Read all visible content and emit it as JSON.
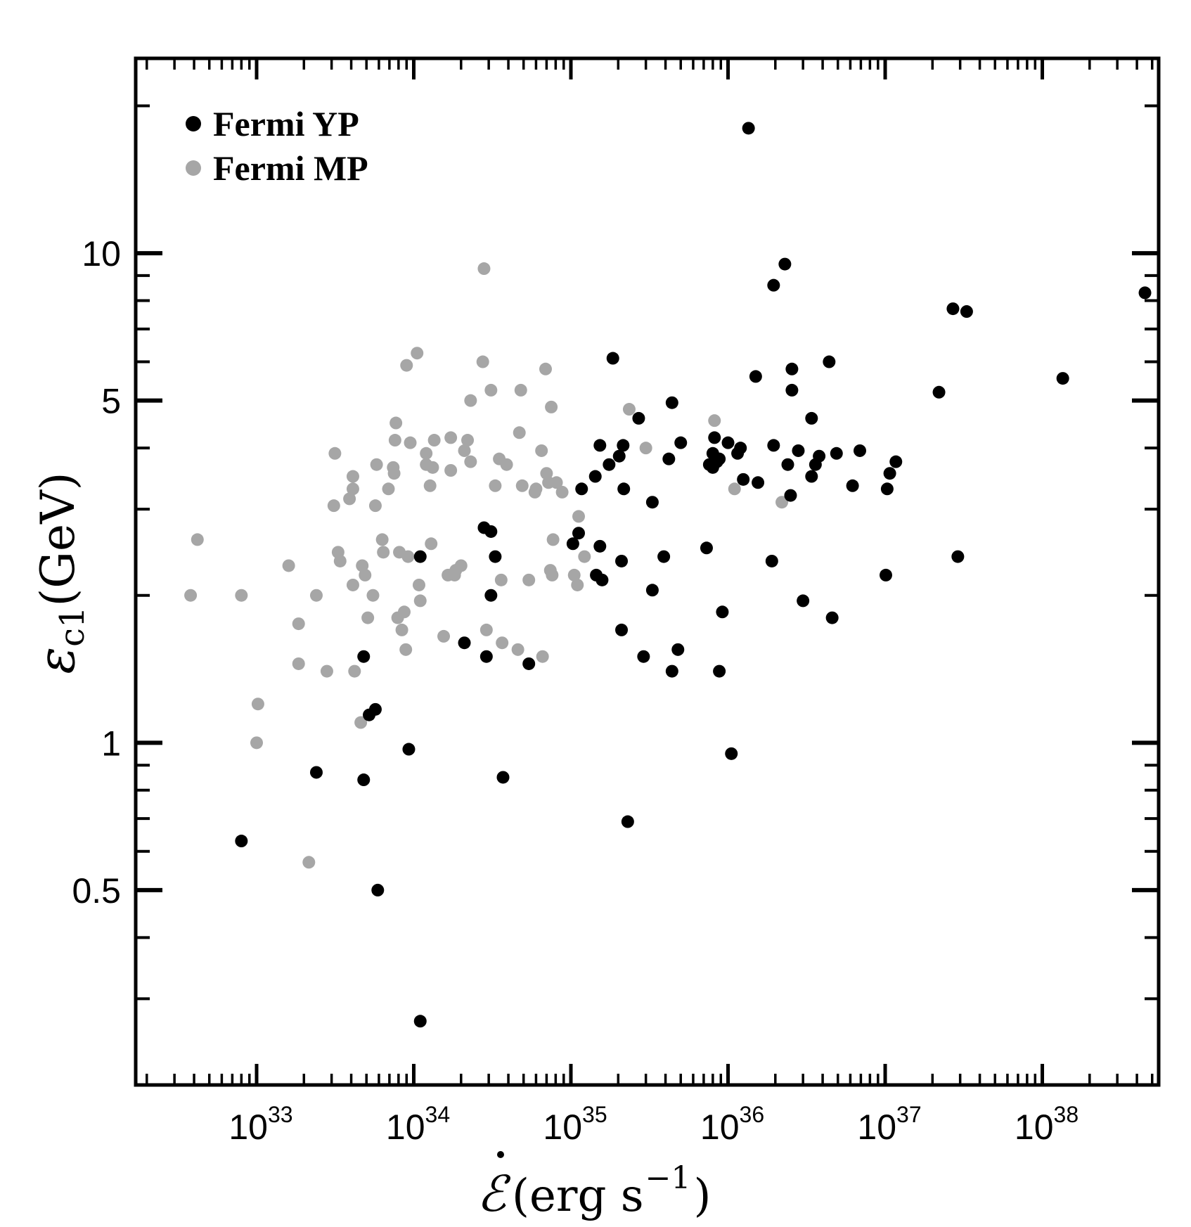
{
  "chart_data": {
    "type": "scatter",
    "xscale": "log",
    "yscale": "log",
    "xlim": [
      1.7e+32,
      5.5e+38
    ],
    "ylim": [
      0.2,
      25
    ],
    "xticks": [
      {
        "value": 1e+33,
        "base": "10",
        "exp": "33"
      },
      {
        "value": 1e+34,
        "base": "10",
        "exp": "34"
      },
      {
        "value": 1e+35,
        "base": "10",
        "exp": "35"
      },
      {
        "value": 1e+36,
        "base": "10",
        "exp": "36"
      },
      {
        "value": 1e+37,
        "base": "10",
        "exp": "37"
      },
      {
        "value": 1e+38,
        "base": "10",
        "exp": "38"
      }
    ],
    "yticks": [
      {
        "value": 0.5,
        "label": "0.5"
      },
      {
        "value": 1,
        "label": "1"
      },
      {
        "value": 5,
        "label": "5"
      },
      {
        "value": 10,
        "label": "10"
      }
    ],
    "xlabel": "Ė(erg s⁻¹)",
    "xlabel_main": "(erg s",
    "xlabel_exp": "−1",
    "xlabel_close": ")",
    "ylabel": "εc1(GeV)",
    "ylabel_symbol": "ε",
    "ylabel_sub": "c1",
    "ylabel_unit": "(GeV)",
    "legend": "top-left",
    "series": [
      {
        "name": "Fermi YP",
        "color": "#000000",
        "points": [
          [
            8e+32,
            0.63
          ],
          [
            2.4e+33,
            0.87
          ],
          [
            4.8e+33,
            1.5
          ],
          [
            4.8e+33,
            0.84
          ],
          [
            5.2e+33,
            1.14
          ],
          [
            5.7e+33,
            1.17
          ],
          [
            5.9e+33,
            0.5
          ],
          [
            9.3e+33,
            0.97
          ],
          [
            1.1e+34,
            2.4
          ],
          [
            1.1e+34,
            0.27
          ],
          [
            2.1e+34,
            1.6
          ],
          [
            2.8e+34,
            2.75
          ],
          [
            2.9e+34,
            1.5
          ],
          [
            3.1e+34,
            2.0
          ],
          [
            3.1e+34,
            2.7
          ],
          [
            3.3e+34,
            2.4
          ],
          [
            3.7e+34,
            0.85
          ],
          [
            5.4e+34,
            1.45
          ],
          [
            1.03e+35,
            2.55
          ],
          [
            1.12e+35,
            2.68
          ],
          [
            1.17e+35,
            3.3
          ],
          [
            1.43e+35,
            3.5
          ],
          [
            1.45e+35,
            2.2
          ],
          [
            1.53e+35,
            2.52
          ],
          [
            1.53e+35,
            4.05
          ],
          [
            1.58e+35,
            2.15
          ],
          [
            1.75e+35,
            3.7
          ],
          [
            1.85e+35,
            6.1
          ],
          [
            2.03e+35,
            3.85
          ],
          [
            2.1e+35,
            2.35
          ],
          [
            2.1e+35,
            1.7
          ],
          [
            2.15e+35,
            4.05
          ],
          [
            2.17e+35,
            3.3
          ],
          [
            2.3e+35,
            0.69
          ],
          [
            2.7e+35,
            4.6
          ],
          [
            2.9e+35,
            1.5
          ],
          [
            3.3e+35,
            3.1
          ],
          [
            3.3e+35,
            2.05
          ],
          [
            3.9e+35,
            2.4
          ],
          [
            4.2e+35,
            3.8
          ],
          [
            4.4e+35,
            4.95
          ],
          [
            4.4e+35,
            1.4
          ],
          [
            4.8e+35,
            1.55
          ],
          [
            5e+35,
            4.1
          ],
          [
            7.3e+35,
            2.5
          ],
          [
            7.6e+35,
            3.7
          ],
          [
            8e+35,
            3.65
          ],
          [
            8e+35,
            3.9
          ],
          [
            8.2e+35,
            4.2
          ],
          [
            8.5e+35,
            3.75
          ],
          [
            8.8e+35,
            3.8
          ],
          [
            8.8e+35,
            1.4
          ],
          [
            9.2e+35,
            1.85
          ],
          [
            1e+36,
            4.1
          ],
          [
            1.05e+36,
            0.95
          ],
          [
            1.15e+36,
            3.9
          ],
          [
            1.2e+36,
            4.0
          ],
          [
            1.25e+36,
            3.45
          ],
          [
            1.35e+36,
            18
          ],
          [
            1.5e+36,
            5.6
          ],
          [
            1.55e+36,
            3.4
          ],
          [
            1.9e+36,
            2.35
          ],
          [
            1.95e+36,
            4.05
          ],
          [
            1.95e+36,
            8.6
          ],
          [
            2.3e+36,
            9.5
          ],
          [
            2.4e+36,
            3.7
          ],
          [
            2.5e+36,
            3.2
          ],
          [
            2.55e+36,
            5.25
          ],
          [
            2.55e+36,
            5.8
          ],
          [
            2.8e+36,
            3.95
          ],
          [
            3e+36,
            1.95
          ],
          [
            3.4e+36,
            4.6
          ],
          [
            3.4e+36,
            3.5
          ],
          [
            3.6e+36,
            3.7
          ],
          [
            3.8e+36,
            3.85
          ],
          [
            4.4e+36,
            6.0
          ],
          [
            4.6e+36,
            1.8
          ],
          [
            4.9e+36,
            3.9
          ],
          [
            6.2e+36,
            3.35
          ],
          [
            6.9e+36,
            3.95
          ],
          [
            1.01e+37,
            2.2
          ],
          [
            1.03e+37,
            3.3
          ],
          [
            1.07e+37,
            3.55
          ],
          [
            1.17e+37,
            3.75
          ],
          [
            2.2e+37,
            5.2
          ],
          [
            2.7e+37,
            7.7
          ],
          [
            2.9e+37,
            2.4
          ],
          [
            3.3e+37,
            7.6
          ],
          [
            1.35e+38,
            5.55
          ],
          [
            4.5e+38,
            8.3
          ]
        ]
      },
      {
        "name": "Fermi MP",
        "color": "#a6a6a6",
        "points": [
          [
            3.8e+32,
            2.0
          ],
          [
            4.2e+32,
            2.6
          ],
          [
            8e+32,
            2.0
          ],
          [
            1e+33,
            1.0
          ],
          [
            1.02e+33,
            1.2
          ],
          [
            1.6e+33,
            2.3
          ],
          [
            1.85e+33,
            1.75
          ],
          [
            1.85e+33,
            1.45
          ],
          [
            2.15e+33,
            0.57
          ],
          [
            2.4e+33,
            2.0
          ],
          [
            2.8e+33,
            1.4
          ],
          [
            3.1e+33,
            3.05
          ],
          [
            3.15e+33,
            3.9
          ],
          [
            3.3e+33,
            2.45
          ],
          [
            3.4e+33,
            2.35
          ],
          [
            3.9e+33,
            3.15
          ],
          [
            4.1e+33,
            3.5
          ],
          [
            4.1e+33,
            3.3
          ],
          [
            4.1e+33,
            2.1
          ],
          [
            4.2e+33,
            1.4
          ],
          [
            4.6e+33,
            1.1
          ],
          [
            4.7e+33,
            2.3
          ],
          [
            4.9e+33,
            2.2
          ],
          [
            5.1e+33,
            1.8
          ],
          [
            5.5e+33,
            2.0
          ],
          [
            5.7e+33,
            3.05
          ],
          [
            5.8e+33,
            3.7
          ],
          [
            6.3e+33,
            2.6
          ],
          [
            6.4e+33,
            2.45
          ],
          [
            6.9e+33,
            3.3
          ],
          [
            7.4e+33,
            3.65
          ],
          [
            7.5e+33,
            3.55
          ],
          [
            7.6e+33,
            4.15
          ],
          [
            7.7e+33,
            4.5
          ],
          [
            7.9e+33,
            1.8
          ],
          [
            8.1e+33,
            2.45
          ],
          [
            8.4e+33,
            1.7
          ],
          [
            8.7e+33,
            1.85
          ],
          [
            8.9e+33,
            1.55
          ],
          [
            9e+33,
            5.9
          ],
          [
            9.2e+33,
            2.4
          ],
          [
            9.5e+33,
            4.1
          ],
          [
            1.05e+34,
            6.25
          ],
          [
            1.08e+34,
            2.1
          ],
          [
            1.1e+34,
            1.95
          ],
          [
            1.2e+34,
            3.7
          ],
          [
            1.2e+34,
            3.9
          ],
          [
            1.27e+34,
            3.35
          ],
          [
            1.29e+34,
            2.55
          ],
          [
            1.32e+34,
            3.65
          ],
          [
            1.35e+34,
            4.15
          ],
          [
            1.55e+34,
            1.65
          ],
          [
            1.65e+34,
            2.2
          ],
          [
            1.72e+34,
            3.6
          ],
          [
            1.72e+34,
            4.2
          ],
          [
            1.82e+34,
            2.2
          ],
          [
            1.85e+34,
            2.25
          ],
          [
            2e+34,
            2.3
          ],
          [
            2.1e+34,
            3.95
          ],
          [
            2.2e+34,
            4.15
          ],
          [
            2.3e+34,
            3.75
          ],
          [
            2.3e+34,
            5.0
          ],
          [
            2.8e+34,
            9.3
          ],
          [
            2.75e+34,
            6.0
          ],
          [
            2.9e+34,
            1.7
          ],
          [
            3.1e+34,
            5.25
          ],
          [
            3.3e+34,
            3.35
          ],
          [
            3.5e+34,
            3.8
          ],
          [
            3.6e+34,
            2.15
          ],
          [
            3.65e+34,
            1.6
          ],
          [
            3.9e+34,
            3.7
          ],
          [
            4.6e+34,
            1.55
          ],
          [
            4.7e+34,
            4.3
          ],
          [
            4.8e+34,
            5.25
          ],
          [
            4.9e+34,
            3.35
          ],
          [
            5.4e+34,
            2.15
          ],
          [
            5.9e+34,
            3.25
          ],
          [
            6e+34,
            3.3
          ],
          [
            6.5e+34,
            3.95
          ],
          [
            6.6e+34,
            1.5
          ],
          [
            6.9e+34,
            5.8
          ],
          [
            7e+34,
            3.55
          ],
          [
            7.2e+34,
            3.4
          ],
          [
            7.4e+34,
            2.25
          ],
          [
            7.5e+34,
            4.85
          ],
          [
            7.6e+34,
            2.2
          ],
          [
            7.7e+34,
            2.6
          ],
          [
            8.1e+34,
            3.4
          ],
          [
            8.8e+34,
            3.25
          ],
          [
            1.05e+35,
            2.2
          ],
          [
            1.1e+35,
            2.1
          ],
          [
            1.12e+35,
            2.9
          ],
          [
            1.22e+35,
            2.4
          ],
          [
            2.35e+35,
            4.8
          ],
          [
            3e+35,
            4.0
          ],
          [
            8.2e+35,
            4.55
          ],
          [
            1.1e+36,
            3.3
          ],
          [
            2.2e+36,
            3.1
          ]
        ]
      }
    ]
  }
}
